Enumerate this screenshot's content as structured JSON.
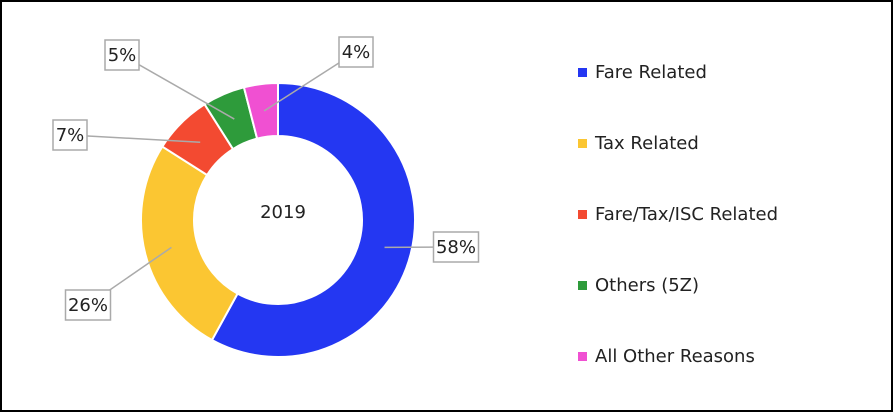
{
  "chart_data": {
    "type": "donut",
    "center_label": "2019",
    "categories": [
      "Fare Related",
      "Tax Related",
      "Fare/Tax/ISC Related",
      "Others (5Z)",
      "All Other Reasons"
    ],
    "values": [
      58,
      26,
      7,
      5,
      4
    ],
    "value_labels": [
      "58%",
      "26%",
      "7%",
      "5%",
      "4%"
    ],
    "colors": [
      "#2437f2",
      "#fbc632",
      "#f34a31",
      "#2e9b3b",
      "#f050d2"
    ],
    "legend": "right"
  }
}
